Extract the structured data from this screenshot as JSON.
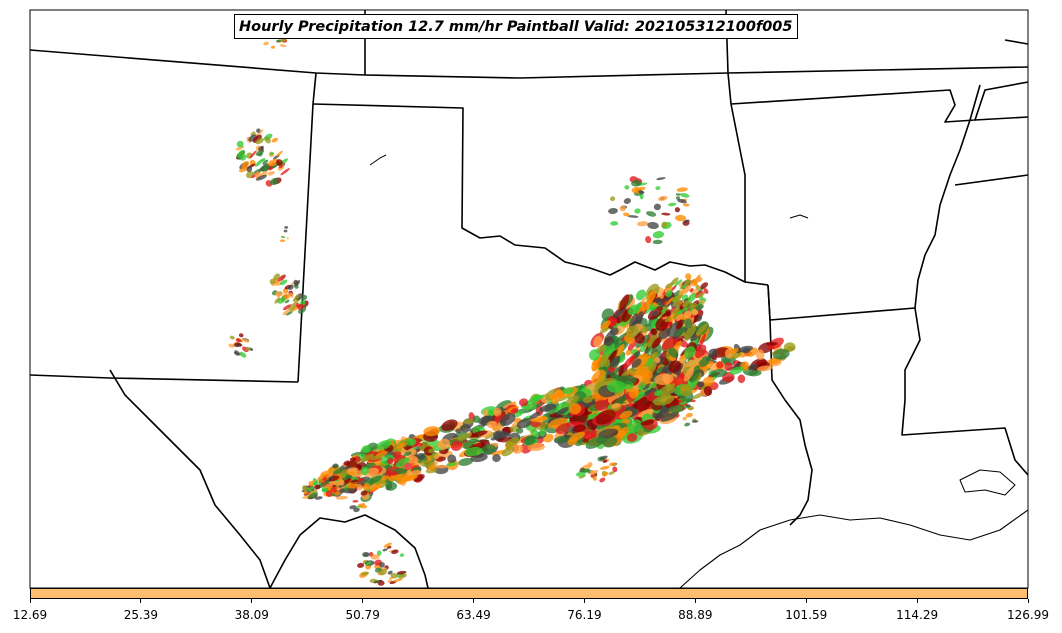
{
  "title": "Hourly Precipitation 12.7 mm/hr Paintball Valid: 202105312100f005",
  "colorbar": {
    "color": "#fdbf6f",
    "ticks": [
      "12.69",
      "25.39",
      "38.09",
      "50.79",
      "63.49",
      "76.19",
      "88.89",
      "101.59",
      "114.29",
      "126.99"
    ]
  },
  "map": {
    "region": "Southern Plains / Texas / Oklahoma / Louisiana",
    "boundary_color": "#000000",
    "ensemble_member_colors": [
      "#e31a1c",
      "#33cc33",
      "#ff8c00",
      "#8b0000",
      "#9a9a1a",
      "#2e7d32",
      "#444444",
      "#ffa040"
    ]
  }
}
